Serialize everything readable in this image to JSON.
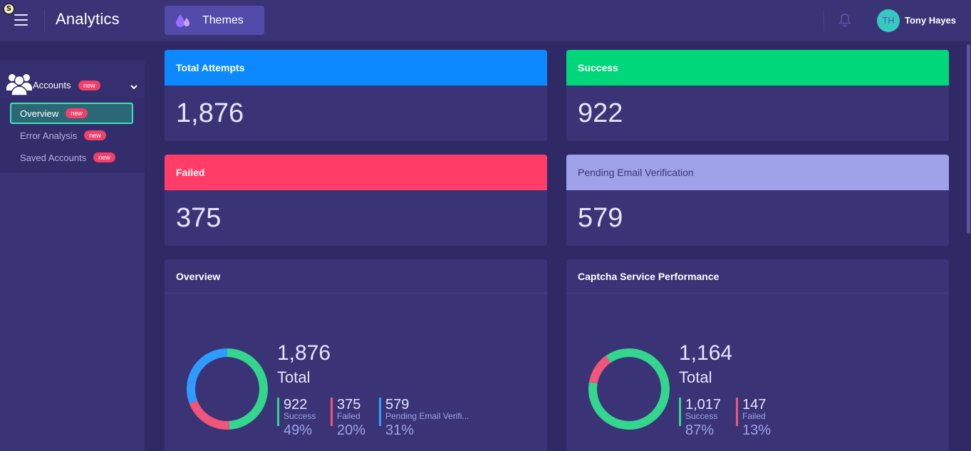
{
  "header": {
    "badge_text": "S",
    "title": "Analytics",
    "themes_label": "Themes",
    "user": {
      "initials": "TH",
      "name": "Tony Hayes"
    }
  },
  "sidebar": {
    "section": {
      "label": "Accounts",
      "badge": "new"
    },
    "items": [
      {
        "label": "Overview",
        "badge": "new",
        "active": true
      },
      {
        "label": "Error Analysis",
        "badge": "new",
        "active": false
      },
      {
        "label": "Saved Accounts",
        "badge": "new",
        "active": false
      }
    ]
  },
  "stats": [
    {
      "title": "Total Attempts",
      "value": "1,876",
      "color": "#0d89ff"
    },
    {
      "title": "Success",
      "value": "922",
      "color": "#00d67a"
    },
    {
      "title": "Failed",
      "value": "375",
      "color": "#ff3d66"
    },
    {
      "title": "Pending Email Verification",
      "value": "579",
      "color": "#9fa2e8"
    }
  ],
  "overview": {
    "title": "Overview",
    "total": "1,876",
    "total_label": "Total",
    "legend": [
      {
        "value": "922",
        "label": "Success",
        "pct": "49%",
        "color": "#33d68c"
      },
      {
        "value": "375",
        "label": "Failed",
        "pct": "20%",
        "color": "#f0557a"
      },
      {
        "value": "579",
        "label": "Pending Email Verifi...",
        "pct": "31%",
        "color": "#2f9bff"
      }
    ]
  },
  "captcha": {
    "title": "Captcha Service Performance",
    "total": "1,164",
    "total_label": "Total",
    "legend": [
      {
        "value": "1,017",
        "label": "Success",
        "pct": "87%",
        "color": "#33d68c"
      },
      {
        "value": "147",
        "label": "Failed",
        "pct": "13%",
        "color": "#f0557a"
      }
    ]
  },
  "chart_data": [
    {
      "type": "pie",
      "title": "Overview",
      "categories": [
        "Success",
        "Failed",
        "Pending Email Verifi..."
      ],
      "values": [
        922,
        375,
        579
      ],
      "percentages": [
        49,
        20,
        31
      ],
      "total": 1876,
      "colors": [
        "#33d68c",
        "#f0557a",
        "#2f9bff"
      ]
    },
    {
      "type": "pie",
      "title": "Captcha Service Performance",
      "categories": [
        "Success",
        "Failed"
      ],
      "values": [
        1017,
        147
      ],
      "percentages": [
        87,
        13
      ],
      "total": 1164,
      "colors": [
        "#33d68c",
        "#f0557a"
      ]
    }
  ]
}
